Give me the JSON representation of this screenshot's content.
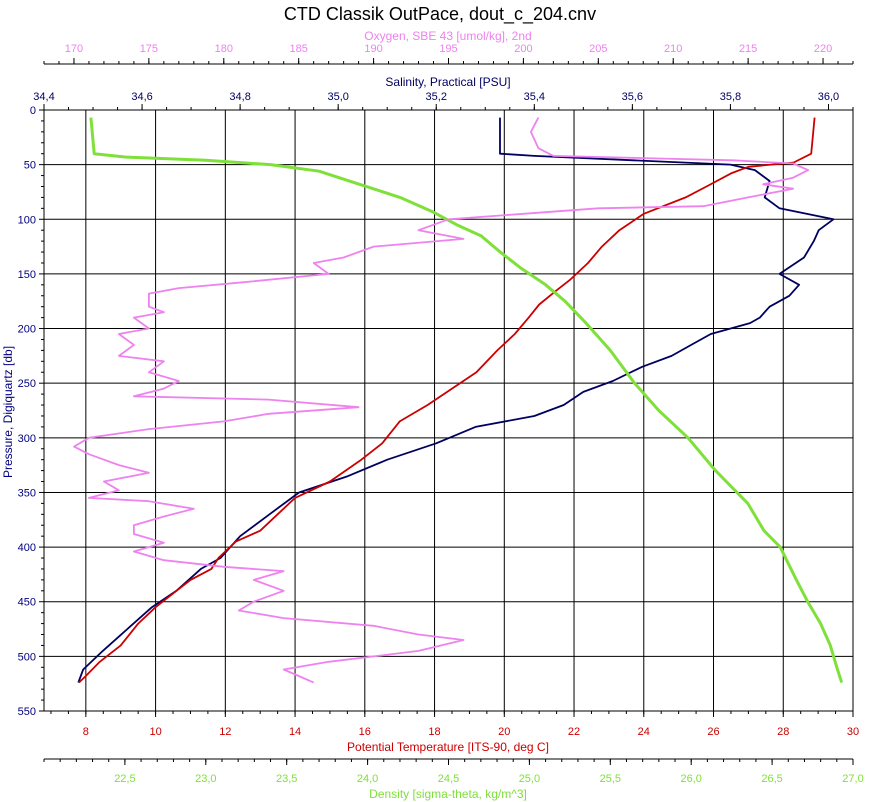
{
  "chart_data": {
    "type": "line",
    "title": "CTD Classik OutPace, dout_c_204.cnv",
    "grid": true,
    "y_axis": {
      "label": "Pressure, Digiquartz [db]",
      "range": [
        0,
        550
      ],
      "reversed": true,
      "ticks": [
        "0",
        "50",
        "100",
        "150",
        "200",
        "250",
        "300",
        "350",
        "400",
        "450",
        "500",
        "550"
      ]
    },
    "axes": {
      "temperature": {
        "label": "Potential Temperature [ITS-90, deg C]",
        "color": "#cc0000",
        "position": "bottom",
        "range": [
          6.8,
          30.0
        ],
        "ticks": [
          "8",
          "10",
          "12",
          "14",
          "16",
          "18",
          "20",
          "22",
          "24",
          "26",
          "28",
          "30"
        ]
      },
      "density": {
        "label": "Density [sigma-theta, kg/m^3]",
        "color": "#7fe03a",
        "position": "bottom",
        "range": [
          22.0,
          27.0
        ],
        "ticks": [
          "22,5",
          "23,0",
          "23,5",
          "24,0",
          "24,5",
          "25,0",
          "25,5",
          "26,0",
          "26,5",
          "27,0"
        ]
      },
      "salinity": {
        "label": "Salinity, Practical [PSU]",
        "color": "#000060",
        "position": "top",
        "range": [
          34.4,
          36.05
        ],
        "ticks": [
          "34,4",
          "34,6",
          "34,8",
          "35,0",
          "35,2",
          "35,4",
          "35,6",
          "35,8",
          "36,0"
        ]
      },
      "oxygen": {
        "label": "Oxygen, SBE 43 [umol/kg], 2nd",
        "color": "#ee82ee",
        "position": "top",
        "range": [
          168,
          222
        ],
        "ticks": [
          "170",
          "175",
          "180",
          "185",
          "190",
          "195",
          "200",
          "205",
          "210",
          "215",
          "220"
        ]
      }
    },
    "series": [
      {
        "axis": "salinity",
        "color": "#000060",
        "points": [
          [
            35.33,
            7
          ],
          [
            35.33,
            40
          ],
          [
            35.4,
            42
          ],
          [
            35.8,
            50
          ],
          [
            35.85,
            55
          ],
          [
            35.88,
            65
          ],
          [
            35.87,
            80
          ],
          [
            35.9,
            90
          ],
          [
            36.01,
            100
          ],
          [
            35.98,
            110
          ],
          [
            35.97,
            120
          ],
          [
            35.95,
            135
          ],
          [
            35.9,
            150
          ],
          [
            35.94,
            160
          ],
          [
            35.92,
            170
          ],
          [
            35.88,
            180
          ],
          [
            35.86,
            190
          ],
          [
            35.84,
            195
          ],
          [
            35.76,
            205
          ],
          [
            35.72,
            215
          ],
          [
            35.68,
            225
          ],
          [
            35.62,
            235
          ],
          [
            35.56,
            248
          ],
          [
            35.5,
            258
          ],
          [
            35.46,
            270
          ],
          [
            35.4,
            280
          ],
          [
            35.28,
            290
          ],
          [
            35.2,
            305
          ],
          [
            35.1,
            320
          ],
          [
            35.02,
            335
          ],
          [
            34.92,
            350
          ],
          [
            34.86,
            370
          ],
          [
            34.8,
            390
          ],
          [
            34.76,
            410
          ],
          [
            34.72,
            420
          ],
          [
            34.67,
            440
          ],
          [
            34.62,
            455
          ],
          [
            34.57,
            475
          ],
          [
            34.52,
            495
          ],
          [
            34.48,
            512
          ],
          [
            34.47,
            524
          ]
        ]
      },
      {
        "axis": "temperature",
        "color": "#cc0000",
        "points": [
          [
            28.9,
            7
          ],
          [
            28.8,
            40
          ],
          [
            28.3,
            48
          ],
          [
            27.0,
            52
          ],
          [
            26.5,
            58
          ],
          [
            25.8,
            70
          ],
          [
            25.2,
            80
          ],
          [
            24.0,
            95
          ],
          [
            23.3,
            110
          ],
          [
            22.8,
            125
          ],
          [
            22.4,
            140
          ],
          [
            21.9,
            155
          ],
          [
            21.5,
            165
          ],
          [
            21.0,
            178
          ],
          [
            20.7,
            190
          ],
          [
            20.3,
            205
          ],
          [
            19.8,
            220
          ],
          [
            19.2,
            240
          ],
          [
            18.5,
            255
          ],
          [
            17.8,
            270
          ],
          [
            17.0,
            285
          ],
          [
            16.5,
            305
          ],
          [
            15.9,
            320
          ],
          [
            15.0,
            340
          ],
          [
            14.0,
            355
          ],
          [
            13.5,
            370
          ],
          [
            13.0,
            385
          ],
          [
            12.3,
            395
          ],
          [
            11.8,
            410
          ],
          [
            11.6,
            420
          ],
          [
            11.0,
            430
          ],
          [
            10.6,
            440
          ],
          [
            10.0,
            455
          ],
          [
            9.5,
            470
          ],
          [
            9.0,
            490
          ],
          [
            8.4,
            505
          ],
          [
            8.0,
            518
          ],
          [
            7.8,
            524
          ]
        ]
      },
      {
        "axis": "density",
        "color": "#7fe03a",
        "points": [
          [
            22.29,
            7
          ],
          [
            22.31,
            40
          ],
          [
            22.5,
            43
          ],
          [
            23.0,
            46
          ],
          [
            23.4,
            50
          ],
          [
            23.7,
            56
          ],
          [
            23.95,
            68
          ],
          [
            24.2,
            80
          ],
          [
            24.4,
            93
          ],
          [
            24.55,
            105
          ],
          [
            24.7,
            115
          ],
          [
            24.82,
            130
          ],
          [
            24.95,
            145
          ],
          [
            25.1,
            160
          ],
          [
            25.22,
            175
          ],
          [
            25.35,
            195
          ],
          [
            25.5,
            220
          ],
          [
            25.65,
            250
          ],
          [
            25.8,
            275
          ],
          [
            25.98,
            300
          ],
          [
            26.15,
            330
          ],
          [
            26.35,
            360
          ],
          [
            26.45,
            385
          ],
          [
            26.55,
            400
          ],
          [
            26.65,
            430
          ],
          [
            26.72,
            450
          ],
          [
            26.8,
            470
          ],
          [
            26.86,
            490
          ],
          [
            26.9,
            510
          ],
          [
            26.93,
            524
          ]
        ]
      },
      {
        "axis": "oxygen",
        "color": "#ee82ee",
        "points": [
          [
            201,
            7
          ],
          [
            200.5,
            20
          ],
          [
            201,
            35
          ],
          [
            202,
            42
          ],
          [
            208,
            44
          ],
          [
            214,
            46
          ],
          [
            218,
            49
          ],
          [
            219,
            55
          ],
          [
            218,
            62
          ],
          [
            216,
            68
          ],
          [
            218,
            72
          ],
          [
            215,
            80
          ],
          [
            212,
            88
          ],
          [
            205,
            90
          ],
          [
            200,
            95
          ],
          [
            195,
            100
          ],
          [
            193,
            110
          ],
          [
            196,
            118
          ],
          [
            190,
            125
          ],
          [
            188,
            135
          ],
          [
            186,
            140
          ],
          [
            187,
            150
          ],
          [
            181,
            158
          ],
          [
            177,
            163
          ],
          [
            175,
            168
          ],
          [
            175,
            180
          ],
          [
            176,
            185
          ],
          [
            174,
            190
          ],
          [
            175,
            200
          ],
          [
            173,
            205
          ],
          [
            174,
            215
          ],
          [
            173,
            225
          ],
          [
            176,
            230
          ],
          [
            175,
            240
          ],
          [
            177,
            248
          ],
          [
            176,
            255
          ],
          [
            174,
            262
          ],
          [
            183,
            265
          ],
          [
            189,
            272
          ],
          [
            183,
            278
          ],
          [
            180,
            285
          ],
          [
            175,
            292
          ],
          [
            171,
            300
          ],
          [
            170,
            308
          ],
          [
            171,
            315
          ],
          [
            173,
            325
          ],
          [
            175,
            332
          ],
          [
            172,
            340
          ],
          [
            173,
            348
          ],
          [
            171,
            355
          ],
          [
            175,
            358
          ],
          [
            178,
            365
          ],
          [
            176,
            372
          ],
          [
            174,
            380
          ],
          [
            174,
            388
          ],
          [
            176,
            396
          ],
          [
            174,
            404
          ],
          [
            176,
            412
          ],
          [
            180,
            418
          ],
          [
            184,
            422
          ],
          [
            182,
            430
          ],
          [
            184,
            440
          ],
          [
            182,
            450
          ],
          [
            181,
            458
          ],
          [
            184,
            465
          ],
          [
            190,
            472
          ],
          [
            193,
            480
          ],
          [
            196,
            485
          ],
          [
            193,
            495
          ],
          [
            190,
            500
          ],
          [
            187,
            505
          ],
          [
            184,
            512
          ],
          [
            185,
            518
          ],
          [
            186,
            524
          ]
        ]
      }
    ]
  }
}
